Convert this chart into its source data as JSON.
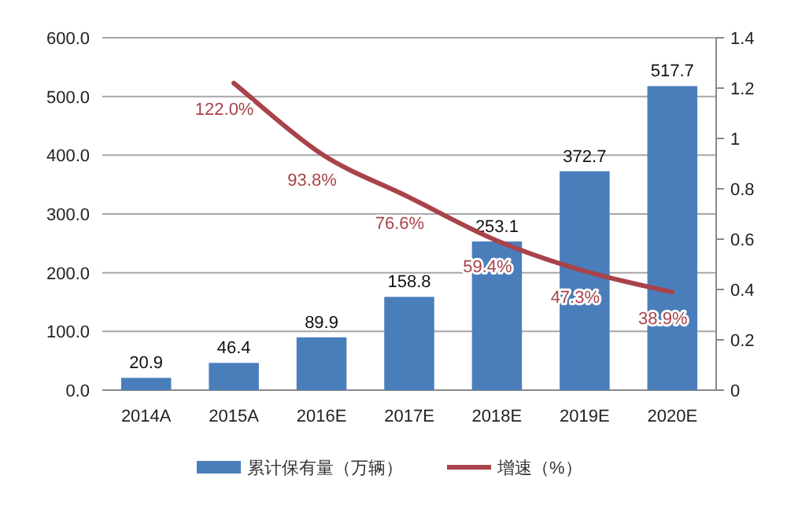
{
  "chart_data": {
    "type": "bar",
    "categories": [
      "2014A",
      "2015A",
      "2016E",
      "2017E",
      "2018E",
      "2019E",
      "2020E"
    ],
    "ylim": [
      0,
      600
    ],
    "yticks": [
      {
        "value": 0,
        "label": "0.0"
      },
      {
        "value": 100,
        "label": "100.0"
      },
      {
        "value": 200,
        "label": "200.0"
      },
      {
        "value": 300,
        "label": "300.0"
      },
      {
        "value": 400,
        "label": "400.0"
      },
      {
        "value": 500,
        "label": "500.0"
      },
      {
        "value": 600,
        "label": "600.0"
      }
    ],
    "y2lim": [
      0,
      1.4
    ],
    "y2ticks": [
      0,
      0.2,
      0.4,
      0.6,
      0.8,
      1,
      1.2,
      1.4
    ],
    "grid": "y",
    "legend": "bottom",
    "series": [
      {
        "name": "累计保有量（万辆）",
        "color": "#4a7ebb",
        "values": [
          20.9,
          46.4,
          89.9,
          158.8,
          253.1,
          372.7,
          517.7
        ],
        "value_labels": [
          "20.9",
          "46.4",
          "89.9",
          "158.8",
          "253.1",
          "372.7",
          "517.7"
        ]
      },
      {
        "name": "增速（%）",
        "type": "line",
        "axis": "y2",
        "color": "#a8434a",
        "values": [
          null,
          1.22,
          0.938,
          0.766,
          0.594,
          0.473,
          0.389
        ],
        "value_labels": [
          null,
          "122.0%",
          "93.8%",
          "76.6%",
          "59.4%",
          "47.3%",
          "38.9%"
        ]
      }
    ]
  }
}
